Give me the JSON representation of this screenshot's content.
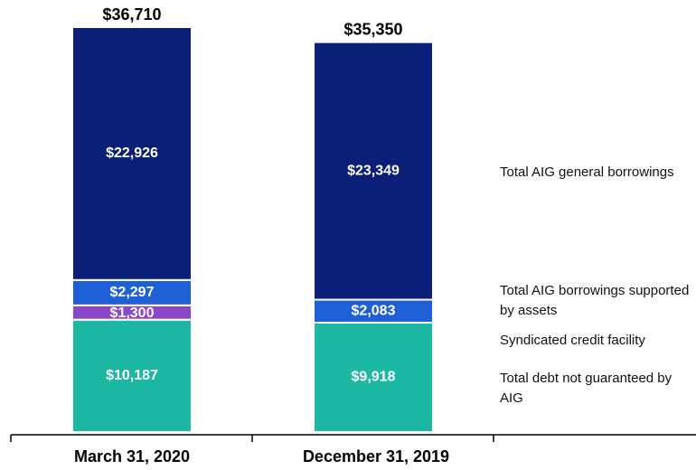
{
  "chart_data": {
    "type": "stacked_bar",
    "categories": [
      "March 31, 2020",
      "December 31, 2019"
    ],
    "series": [
      {
        "name": "Total debt not guaranteed by AIG",
        "color": "#1cb8a4",
        "values": [
          10187,
          9918
        ],
        "value_labels": [
          "$10,187",
          "$9,918"
        ]
      },
      {
        "name": "Syndicated credit facility",
        "color": "#8a45c8",
        "values": [
          1300,
          null
        ],
        "value_labels": [
          "$1,300",
          null
        ]
      },
      {
        "name": "Total AIG borrowings supported by assets",
        "color": "#1f5fd6",
        "values": [
          2297,
          2083
        ],
        "value_labels": [
          "$2,297",
          "$2,083"
        ]
      },
      {
        "name": "Total AIG general borrowings",
        "color": "#0b1f78",
        "values": [
          22926,
          23349
        ],
        "value_labels": [
          "$22,926",
          "$23,349"
        ]
      }
    ],
    "totals": [
      36710,
      35350
    ],
    "total_labels": [
      "$36,710",
      "$35,350"
    ]
  }
}
